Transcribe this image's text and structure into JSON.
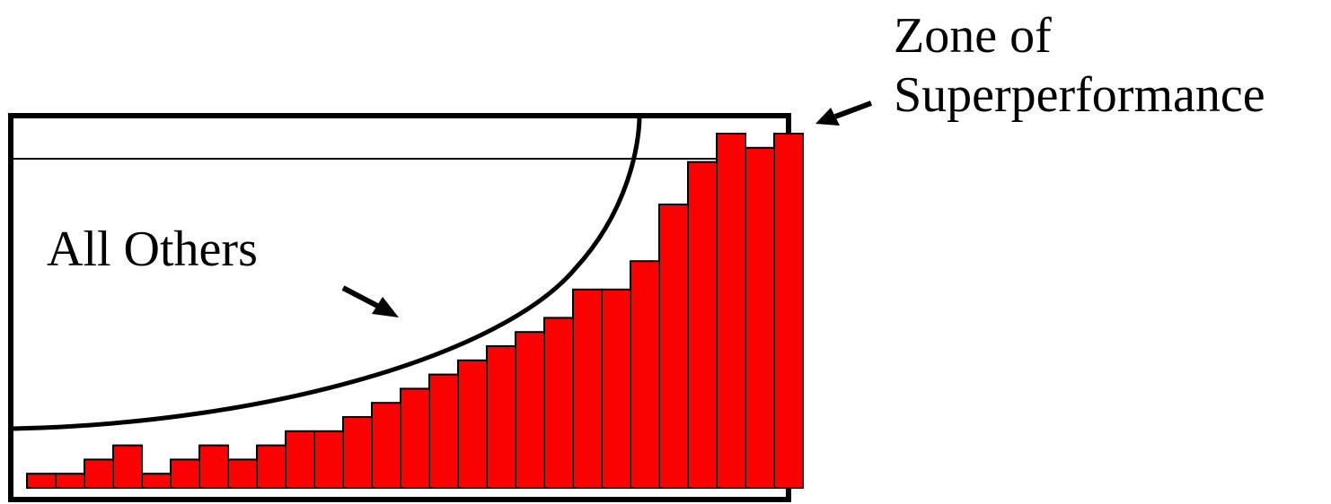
{
  "labels": {
    "zone_line1": "Zone of",
    "zone_line2": "Superperformance",
    "all_others": "All Others"
  },
  "colors": {
    "bar_fill": "#ff0000",
    "outline": "#000000",
    "background": "#ffffff"
  },
  "chart_data": {
    "type": "bar",
    "values": [
      1,
      1,
      2,
      3,
      1,
      2,
      3,
      2,
      3,
      4,
      4,
      5,
      6,
      7,
      8,
      9,
      10,
      11,
      12,
      14,
      14,
      16,
      20,
      23,
      25,
      24,
      25
    ],
    "threshold": 23,
    "ylim": [
      0,
      26
    ],
    "grid": false
  }
}
